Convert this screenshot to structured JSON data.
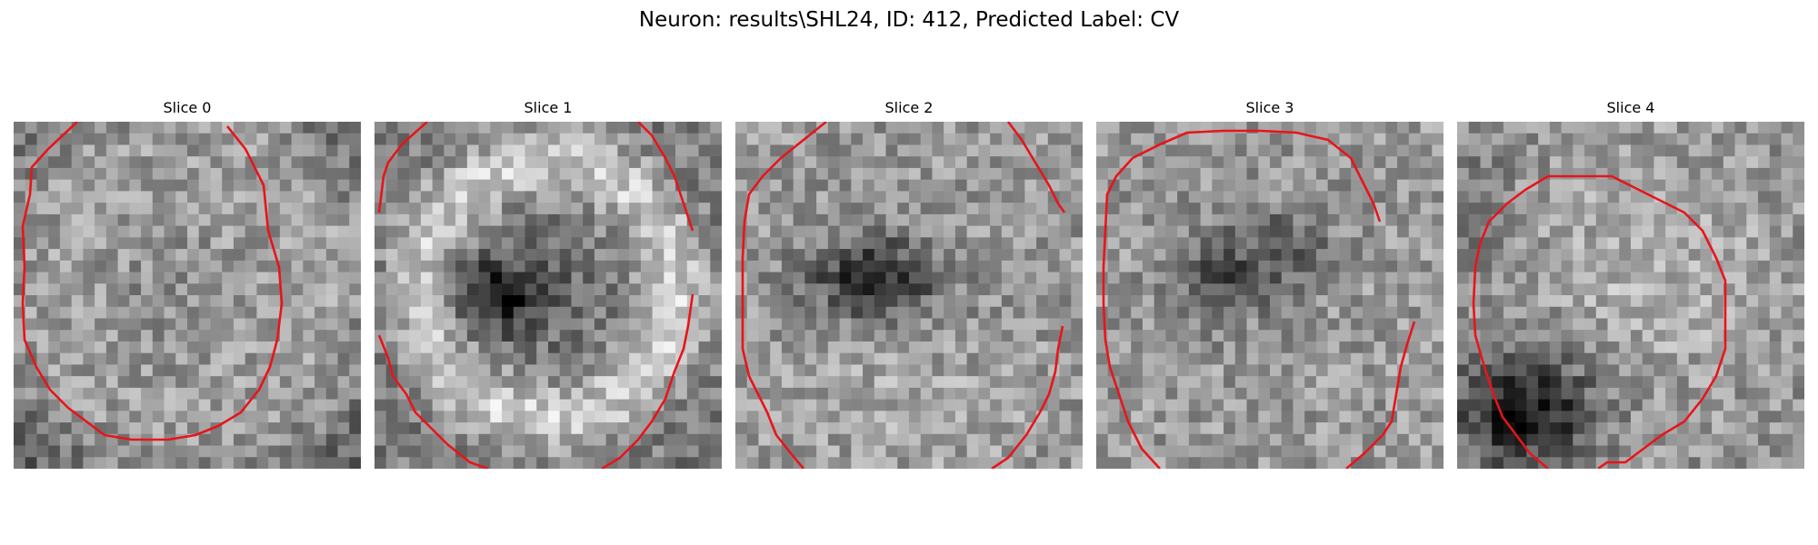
{
  "figure": {
    "title": "Neuron: results\\SHL24, ID: 412, Predicted Label: CV"
  },
  "colors": {
    "contour": "#e8141b",
    "background": "#ffffff"
  },
  "panels": [
    {
      "title": "Slice 0"
    },
    {
      "title": "Slice 1"
    },
    {
      "title": "Slice 2"
    },
    {
      "title": "Slice 3"
    },
    {
      "title": "Slice 4"
    }
  ]
}
